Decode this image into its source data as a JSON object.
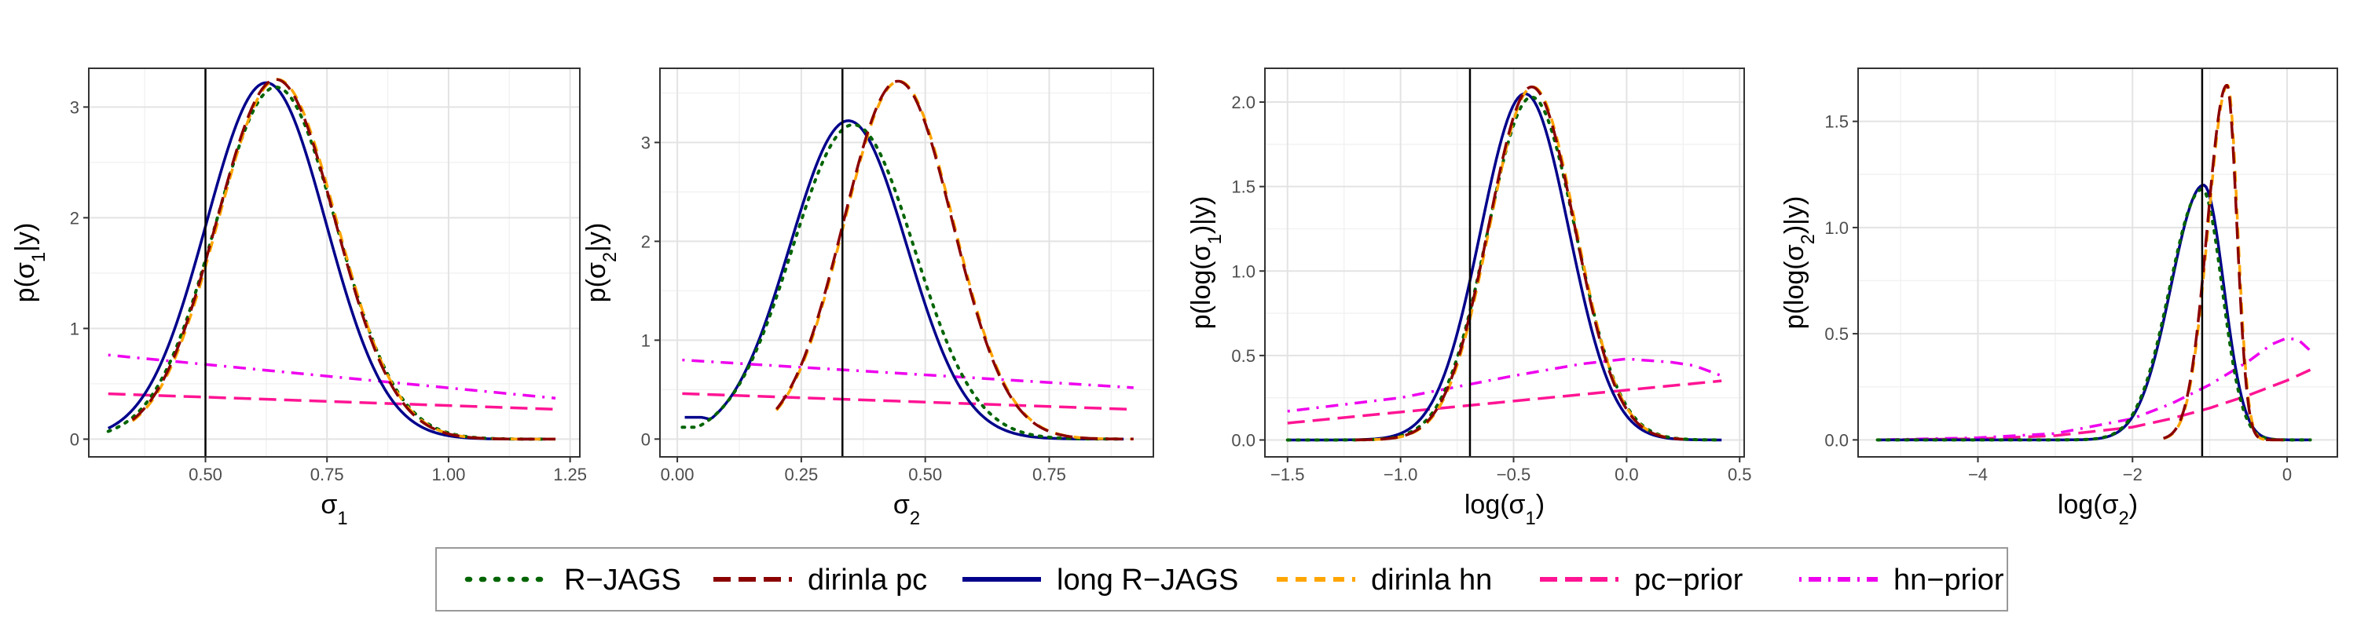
{
  "colors": {
    "R-JAGS": "#006400",
    "dirinla pc": "#8B0000",
    "long R-JAGS": "#00008B",
    "dirinla hn": "#FFA500",
    "pc-prior": "#FF1493",
    "hn-prior": "#EE00EE",
    "vline": "#000000"
  },
  "legend": {
    "entries": [
      {
        "name": "R-JAGS",
        "dash": "dotted"
      },
      {
        "name": "dirinla pc",
        "dash": "longdash"
      },
      {
        "name": "long R-JAGS",
        "dash": "solid"
      },
      {
        "name": "dirinla hn",
        "dash": "dashed"
      },
      {
        "name": "pc-prior",
        "dash": "longdash"
      },
      {
        "name": "hn-prior",
        "dash": "dotdash"
      }
    ]
  },
  "chart_data": [
    {
      "type": "line",
      "xlabel": "σ1",
      "ylabel": "p(σ1|y)",
      "xlim": [
        0.26,
        1.27
      ],
      "ylim": [
        -0.16,
        3.35
      ],
      "xticks": [
        0.5,
        0.75,
        1.0
      ],
      "xticks_extra": [
        1.25
      ],
      "xtick_labels": [
        "0.50",
        "0.75",
        "1.00",
        "1.25"
      ],
      "yticks": [
        0,
        1,
        2,
        3
      ],
      "ytick_labels": [
        "0",
        "1",
        "2",
        "3"
      ],
      "grid": true,
      "vline": 0.5,
      "series": [
        {
          "name": "R-JAGS",
          "kind": "normal",
          "mean": 0.645,
          "sd": 0.125,
          "peak": 3.18,
          "x_range": [
            0.3,
            1.2
          ]
        },
        {
          "name": "long R-JAGS",
          "kind": "normal",
          "mean": 0.625,
          "sd": 0.123,
          "peak": 3.22,
          "x_range": [
            0.3,
            1.2
          ]
        },
        {
          "name": "dirinla pc",
          "kind": "normal",
          "mean": 0.645,
          "sd": 0.122,
          "peak": 3.25,
          "x_range": [
            0.35,
            1.22
          ]
        },
        {
          "name": "dirinla hn",
          "kind": "normal",
          "mean": 0.648,
          "sd": 0.122,
          "peak": 3.25,
          "x_range": [
            0.35,
            1.22
          ]
        },
        {
          "name": "pc-prior",
          "kind": "linear",
          "points": [
            [
              0.3,
              0.41
            ],
            [
              1.22,
              0.27
            ]
          ]
        },
        {
          "name": "hn-prior",
          "kind": "linear",
          "points": [
            [
              0.3,
              0.76
            ],
            [
              1.22,
              0.37
            ]
          ]
        }
      ]
    },
    {
      "type": "line",
      "xlabel": "σ2",
      "ylabel": "p(σ2|y)",
      "xlim": [
        -0.035,
        0.96
      ],
      "ylim": [
        -0.18,
        3.75
      ],
      "xticks": [
        0.0,
        0.25,
        0.5,
        0.75
      ],
      "xtick_labels": [
        "0.00",
        "0.25",
        "0.50",
        "0.75"
      ],
      "yticks": [
        0,
        1,
        2,
        3
      ],
      "ytick_labels": [
        "0",
        "1",
        "2",
        "3"
      ],
      "grid": true,
      "vline": 0.333,
      "series": [
        {
          "name": "R-JAGS",
          "kind": "normal",
          "mean": 0.355,
          "sd": 0.123,
          "peak": 3.18,
          "x_range": [
            0.01,
            0.9
          ],
          "floor": 0.12
        },
        {
          "name": "long R-JAGS",
          "kind": "normal",
          "mean": 0.345,
          "sd": 0.118,
          "peak": 3.22,
          "x_range": [
            0.015,
            0.9
          ],
          "floor": 0.22
        },
        {
          "name": "dirinla pc",
          "kind": "normal",
          "mean": 0.445,
          "sd": 0.11,
          "peak": 3.62,
          "x_range": [
            0.2,
            0.92
          ]
        },
        {
          "name": "dirinla hn",
          "kind": "normal",
          "mean": 0.447,
          "sd": 0.11,
          "peak": 3.62,
          "x_range": [
            0.2,
            0.92
          ]
        },
        {
          "name": "pc-prior",
          "kind": "linear",
          "points": [
            [
              0.01,
              0.46
            ],
            [
              0.92,
              0.3
            ]
          ]
        },
        {
          "name": "hn-prior",
          "kind": "linear",
          "points": [
            [
              0.01,
              0.8
            ],
            [
              0.92,
              0.52
            ]
          ]
        }
      ]
    },
    {
      "type": "line",
      "xlabel": "log(σ1)",
      "ylabel": "p(log(σ1)|y)",
      "xlim": [
        -1.6,
        0.52
      ],
      "ylim": [
        -0.1,
        2.2
      ],
      "xticks": [
        -1.5,
        -1.0,
        -0.5,
        0.0,
        0.5
      ],
      "xtick_labels": [
        "−1.5",
        "−1.0",
        "−0.5",
        "0.0",
        "0.5"
      ],
      "yticks": [
        0.0,
        0.5,
        1.0,
        1.5,
        2.0
      ],
      "ytick_labels": [
        "0.0",
        "0.5",
        "1.0",
        "1.5",
        "2.0"
      ],
      "grid": true,
      "vline": -0.693,
      "series": [
        {
          "name": "R-JAGS",
          "kind": "normal",
          "mean": -0.42,
          "sd": 0.195,
          "peak": 2.03,
          "x_range": [
            -1.5,
            0.42
          ]
        },
        {
          "name": "long R-JAGS",
          "kind": "normal",
          "mean": -0.45,
          "sd": 0.195,
          "peak": 2.05,
          "x_range": [
            -1.5,
            0.42
          ]
        },
        {
          "name": "dirinla pc",
          "kind": "normal",
          "mean": -0.42,
          "sd": 0.19,
          "peak": 2.09,
          "x_range": [
            -1.2,
            0.25
          ]
        },
        {
          "name": "dirinla hn",
          "kind": "normal",
          "mean": -0.415,
          "sd": 0.19,
          "peak": 2.09,
          "x_range": [
            -1.2,
            0.25
          ]
        },
        {
          "name": "pc-prior",
          "kind": "linear",
          "points": [
            [
              -1.5,
              0.1
            ],
            [
              0.42,
              0.35
            ]
          ]
        },
        {
          "name": "hn-prior",
          "kind": "polyline",
          "points": [
            [
              -1.5,
              0.17
            ],
            [
              -1.0,
              0.25
            ],
            [
              -0.5,
              0.38
            ],
            [
              -0.2,
              0.45
            ],
            [
              0.0,
              0.48
            ],
            [
              0.2,
              0.46
            ],
            [
              0.3,
              0.44
            ],
            [
              0.42,
              0.38
            ]
          ]
        }
      ]
    },
    {
      "type": "line",
      "xlabel": "log(σ2)",
      "ylabel": "p(log(σ2)|y)",
      "xlim": [
        -5.55,
        0.65
      ],
      "ylim": [
        -0.08,
        1.75
      ],
      "xticks": [
        -4,
        -2,
        0
      ],
      "xtick_labels": [
        "−4",
        "−2",
        "0"
      ],
      "yticks": [
        0.0,
        0.5,
        1.0,
        1.5
      ],
      "ytick_labels": [
        "0.0",
        "0.5",
        "1.0",
        "1.5"
      ],
      "grid": true,
      "vline": -1.099,
      "series": [
        {
          "name": "R-JAGS",
          "kind": "skew",
          "mode": -1.1,
          "sd_left": 0.42,
          "sd_right": 0.26,
          "peak": 1.18,
          "x_range": [
            -5.3,
            0.3
          ]
        },
        {
          "name": "long R-JAGS",
          "kind": "skew",
          "mode": -1.08,
          "sd_left": 0.42,
          "sd_right": 0.26,
          "peak": 1.2,
          "x_range": [
            -5.3,
            0.3
          ]
        },
        {
          "name": "dirinla pc",
          "kind": "skew",
          "mode": -0.78,
          "sd_left": 0.25,
          "sd_right": 0.13,
          "peak": 1.67,
          "x_range": [
            -1.6,
            0.0
          ]
        },
        {
          "name": "dirinla hn",
          "kind": "skew",
          "mode": -0.77,
          "sd_left": 0.25,
          "sd_right": 0.13,
          "peak": 1.67,
          "x_range": [
            -1.6,
            0.0
          ]
        },
        {
          "name": "pc-prior",
          "kind": "polyline",
          "points": [
            [
              -5.3,
              0.0
            ],
            [
              -4.0,
              0.005
            ],
            [
              -3.0,
              0.02
            ],
            [
              -2.0,
              0.06
            ],
            [
              -1.5,
              0.1
            ],
            [
              -1.0,
              0.15
            ],
            [
              -0.5,
              0.21
            ],
            [
              0.0,
              0.28
            ],
            [
              0.3,
              0.33
            ]
          ]
        },
        {
          "name": "hn-prior",
          "kind": "polyline",
          "points": [
            [
              -5.3,
              0.0
            ],
            [
              -4.0,
              0.01
            ],
            [
              -3.0,
              0.03
            ],
            [
              -2.0,
              0.1
            ],
            [
              -1.5,
              0.17
            ],
            [
              -1.0,
              0.26
            ],
            [
              -0.5,
              0.37
            ],
            [
              -0.2,
              0.45
            ],
            [
              0.0,
              0.48
            ],
            [
              0.15,
              0.47
            ],
            [
              0.3,
              0.42
            ]
          ]
        }
      ]
    }
  ]
}
